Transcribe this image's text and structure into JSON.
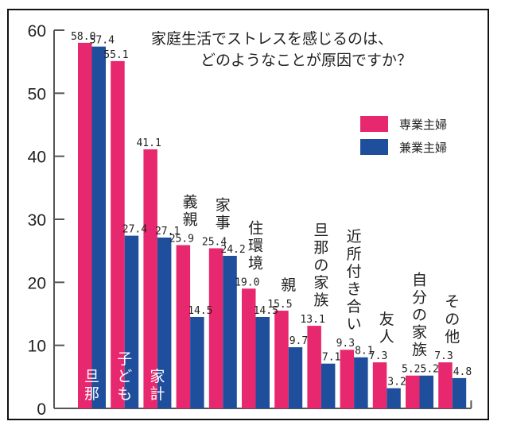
{
  "chart_data": {
    "type": "bar",
    "title_lines": [
      "家庭生活でストレスを感じるのは、",
      "どのようなことが原因ですか？"
    ],
    "xlabel": "",
    "ylabel": "",
    "ylim": [
      0,
      60
    ],
    "yticks": [
      0,
      10,
      20,
      30,
      40,
      50,
      60
    ],
    "grid": false,
    "legend_position": "top-right",
    "categories": [
      "旦那",
      "子ども",
      "家計",
      "義親",
      "家事",
      "住環境",
      "親",
      "旦那の家族",
      "近所付き合い",
      "友人",
      "自分の家族",
      "その他"
    ],
    "category_label_inside_bar": [
      true,
      true,
      true,
      false,
      false,
      false,
      false,
      false,
      false,
      false,
      false,
      false
    ],
    "series": [
      {
        "name": "専業主婦",
        "color": "#e8286e",
        "values": [
          58.0,
          55.1,
          41.1,
          25.9,
          25.4,
          19.0,
          15.5,
          13.1,
          9.3,
          7.3,
          5.2,
          7.3
        ],
        "labels": [
          "58.0",
          "55.1",
          "41.1",
          "25.9",
          "25.4",
          "19.0",
          "15.5",
          "13.1",
          "9.3",
          "7.3",
          "5.2",
          "7.3"
        ]
      },
      {
        "name": "兼業主婦",
        "color": "#1f4e9c",
        "values": [
          57.4,
          27.4,
          27.1,
          14.5,
          24.2,
          14.5,
          9.7,
          7.1,
          8.1,
          3.2,
          5.2,
          4.8
        ],
        "labels": [
          "57.4",
          "27.4",
          "27.1",
          "14.5",
          "24.2",
          "14.5",
          "9.7",
          "7.1",
          "8.1",
          "3.2",
          "5.2",
          "4.8"
        ]
      }
    ]
  }
}
